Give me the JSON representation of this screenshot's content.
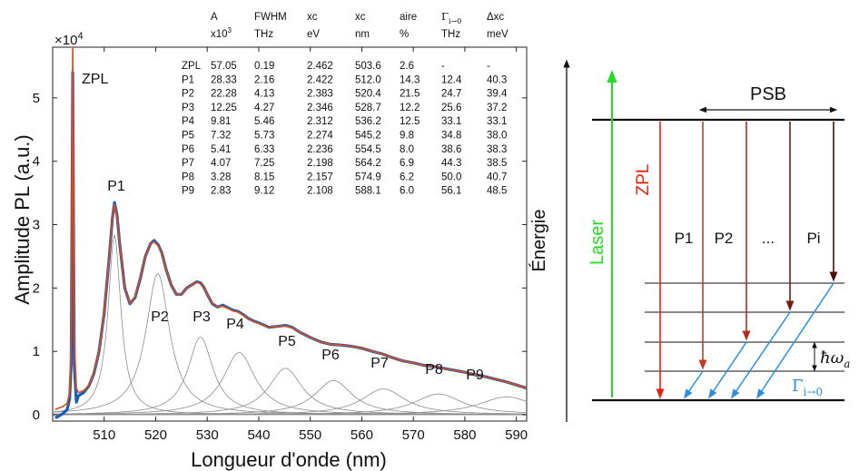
{
  "chart_data": {
    "type": "line",
    "xlabel": "Longueur d'onde (nm)",
    "ylabel": "Amplitude PL (a.u.)",
    "y_multiplier": "×10",
    "y_multiplier_exp": "4",
    "xlim": [
      500,
      592
    ],
    "ylim": [
      -1000,
      58000
    ],
    "xticks": [
      510,
      520,
      530,
      540,
      550,
      560,
      570,
      580,
      590
    ],
    "yticks": [
      0,
      1,
      2,
      3,
      4,
      5
    ],
    "grid": false,
    "series": [
      {
        "color": "#1a5fb4",
        "x": [
          500.5,
          501.0,
          502.0,
          502.8,
          503.3,
          503.6,
          503.9,
          504.2,
          504.6,
          505.0,
          506.0,
          507.0,
          508.0,
          509.0,
          510.0,
          511.0,
          511.6,
          512.0,
          512.5,
          513.0,
          514.0,
          515.0,
          516.0,
          517.0,
          518.0,
          519.0,
          519.7,
          520.5,
          521.2,
          522.0,
          523.0,
          524.0,
          525.0,
          526.0,
          527.0,
          528.0,
          528.7,
          529.3,
          530.0,
          531.0,
          532.0,
          533.0,
          534.0,
          535.0,
          536.0,
          537.0,
          538.0,
          539.0,
          540.0,
          542.0,
          544.0,
          545.2,
          546.5,
          548.0,
          550.0,
          552.0,
          554.0,
          556.0,
          558.0,
          560.0,
          562.0,
          564.0,
          566.0,
          568.0,
          570.0,
          572.0,
          574.0,
          576.0,
          578.0,
          580.0,
          582.0,
          584.0,
          586.0,
          588.0,
          590.0,
          592.0
        ],
        "y": [
          -500,
          -300,
          200,
          800,
          2500,
          8000,
          54000,
          8000,
          2000,
          3000,
          3500,
          4500,
          6500,
          10000,
          16000,
          25000,
          31000,
          33500,
          31500,
          27000,
          20000,
          17500,
          18500,
          21500,
          25000,
          27000,
          27500,
          26800,
          25500,
          23000,
          20500,
          19000,
          19000,
          20000,
          20500,
          21000,
          20800,
          20200,
          19000,
          17500,
          17000,
          17300,
          16900,
          16500,
          16300,
          15800,
          15200,
          14800,
          14500,
          13800,
          14000,
          14100,
          13800,
          13000,
          12200,
          11500,
          11100,
          11000,
          10800,
          10500,
          10000,
          9600,
          9000,
          8500,
          8200,
          7800,
          7600,
          7300,
          7000,
          6700,
          6300,
          6000,
          5600,
          5200,
          4700,
          4200
        ]
      },
      {
        "color": "#e14a14",
        "x": [
          500.5,
          501.0,
          502.0,
          502.8,
          503.3,
          503.6,
          503.9,
          504.2,
          504.6,
          505.0,
          506.0,
          507.0,
          508.0,
          509.0,
          510.0,
          511.0,
          511.6,
          512.0,
          512.5,
          513.0,
          514.0,
          515.0,
          516.0,
          517.0,
          518.0,
          519.0,
          519.7,
          520.5,
          521.2,
          522.0,
          523.0,
          524.0,
          525.0,
          526.0,
          527.0,
          528.0,
          528.7,
          529.3,
          530.0,
          531.0,
          532.0,
          533.0,
          534.0,
          535.0,
          536.0,
          537.0,
          538.0,
          539.0,
          540.0,
          542.0,
          544.0,
          545.2,
          546.5,
          548.0,
          550.0,
          552.0,
          554.0,
          556.0,
          558.0,
          560.0,
          562.0,
          564.0,
          566.0,
          568.0,
          570.0,
          572.0,
          574.0,
          576.0,
          578.0,
          580.0,
          582.0,
          584.0,
          586.0,
          588.0,
          590.0,
          592.0
        ],
        "y": [
          800,
          1000,
          1300,
          1800,
          3500,
          12000,
          58000,
          12000,
          4200,
          3500,
          3800,
          4600,
          6600,
          10000,
          16000,
          25000,
          31000,
          33200,
          31200,
          27000,
          20000,
          17600,
          18600,
          21600,
          25000,
          27000,
          27300,
          26600,
          25400,
          23000,
          20500,
          19000,
          19000,
          20000,
          20500,
          20900,
          20700,
          20100,
          19000,
          17600,
          17100,
          17100,
          16800,
          16400,
          16200,
          15700,
          15200,
          14700,
          14400,
          13800,
          14000,
          14000,
          13700,
          13000,
          12200,
          11500,
          11100,
          11000,
          10800,
          10500,
          10000,
          9600,
          9000,
          8500,
          8200,
          7800,
          7600,
          7300,
          7000,
          6700,
          6300,
          6000,
          5600,
          5200,
          4700,
          4200
        ]
      }
    ],
    "components": [
      {
        "label": "P1",
        "xc": 512.0,
        "A": 28330,
        "w": 3.0
      },
      {
        "label": "P2",
        "xc": 520.4,
        "A": 22280,
        "w": 5.6
      },
      {
        "label": "P3",
        "xc": 528.7,
        "A": 12250,
        "w": 5.9
      },
      {
        "label": "P4",
        "xc": 536.2,
        "A": 9810,
        "w": 7.6
      },
      {
        "label": "P5",
        "xc": 545.2,
        "A": 7320,
        "w": 8.0
      },
      {
        "label": "P6",
        "xc": 554.5,
        "A": 5410,
        "w": 8.8
      },
      {
        "label": "P7",
        "xc": 564.2,
        "A": 4070,
        "w": 10.2
      },
      {
        "label": "P8",
        "xc": 574.9,
        "A": 3280,
        "w": 11.5
      },
      {
        "label": "P9",
        "xc": 588.1,
        "A": 2830,
        "w": 13.0
      }
    ],
    "component_color": "#8c8c8c",
    "zpl_label": "ZPL",
    "table": {
      "headers": [
        [
          "",
          "A",
          "FWHM",
          "xc",
          "xc",
          "aire",
          "Γ",
          "Δxc"
        ],
        [
          "",
          "x10",
          "THz",
          "eV",
          "nm",
          "%",
          "THz",
          "meV"
        ]
      ],
      "header_sup": "3",
      "gamma_sub": "i→0",
      "rows": [
        [
          "ZPL",
          "57.05",
          "0.19",
          "2.462",
          "503.6",
          "2.6",
          "-",
          "-"
        ],
        [
          "P1",
          "28.33",
          "2.16",
          "2.422",
          "512.0",
          "14.3",
          "12.4",
          "40.3"
        ],
        [
          "P2",
          "22.28",
          "4.13",
          "2.383",
          "520.4",
          "21.5",
          "24.7",
          "39.4"
        ],
        [
          "P3",
          "12.25",
          "4.27",
          "2.346",
          "528.7",
          "12.2",
          "25.6",
          "37.2"
        ],
        [
          "P4",
          "9.81",
          "5.46",
          "2.312",
          "536.2",
          "12.5",
          "33.1",
          "33.1"
        ],
        [
          "P5",
          "7.32",
          "5.73",
          "2.274",
          "545.2",
          "9.8",
          "34.8",
          "38.0"
        ],
        [
          "P6",
          "5.41",
          "6.33",
          "2.236",
          "554.5",
          "8.0",
          "38.6",
          "38.3"
        ],
        [
          "P7",
          "4.07",
          "7.25",
          "2.198",
          "564.2",
          "6.9",
          "44.3",
          "38.5"
        ],
        [
          "P8",
          "3.28",
          "8.15",
          "2.157",
          "574.9",
          "6.2",
          "50.0",
          "40.7"
        ],
        [
          "P9",
          "2.83",
          "9.12",
          "2.108",
          "588.1",
          "6.0",
          "56.1",
          "48.5"
        ]
      ]
    }
  },
  "diagram": {
    "energy_label": "Énergie",
    "laser_label": "Laser",
    "zpl_label": "ZPL",
    "psb_label": "PSB",
    "transition_labels": [
      "P1",
      "P2",
      "...",
      "Pi"
    ],
    "phonon_label": "ħω",
    "phonon_sub": "a",
    "gamma_label": "Γ",
    "gamma_sub": "i→0",
    "colors": {
      "laser": "#22dd22",
      "zpl": "#e8230e",
      "p1": "#c83a1c",
      "p2": "#b32b1a",
      "p3": "#7a1b10",
      "pi": "#4a0d05",
      "relax": "#2b8fe0"
    }
  }
}
